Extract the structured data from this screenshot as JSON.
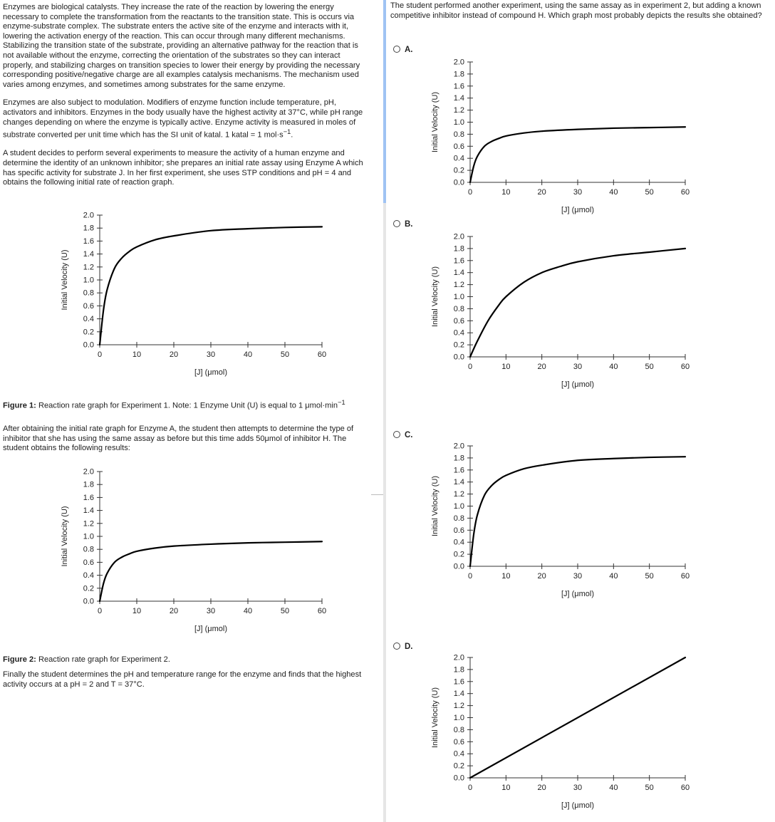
{
  "passage": {
    "p1": "Enzymes are biological catalysts. They increase the rate of the reaction by lowering the energy necessary to complete the transformation from the reactants to the transition state. This is occurs via enzyme-substrate complex. The substrate enters the active site of the enzyme and interacts with it, lowering the activation energy of the reaction. This can occur through many different mechanisms. Stabilizing the transition state of the substrate, providing an alternative pathway for the reaction that is not available without the enzyme, correcting the orientation of the substrates so they can interact properly, and stabilizing charges on transition species to lower their energy by providing the necessary corresponding positive/negative charge are all examples catalysis mechanisms. The mechanism used varies among enzymes, and sometimes among substrates for the same enzyme.",
    "p2_main": "Enzymes are also subject to modulation. Modifiers of enzyme function include temperature, pH, activators and inhibitors. Enzymes in the body usually have the highest activity at 37°C, while pH range changes depending on where the enzyme is typically active. Enzyme activity is measured in moles of substrate converted per unit time which has the SI unit of katal. 1 katal = 1 mol·s",
    "p2_sup": "−1",
    "p2_end": ".",
    "p3": "A student decides to perform several experiments to measure the activity of a human enzyme and determine the identity of an unknown inhibitor; she prepares an initial rate assay using Enzyme A which has specific activity for substrate J. In her first experiment, she uses STP conditions and pH = 4 and obtains the following initial rate of reaction graph.",
    "fig1_label": "Figure 1:",
    "fig1_text": " Reaction rate graph for Experiment 1. Note: 1 Enzyme Unit (U) is equal to 1 μmol·min",
    "fig1_sup": "−1",
    "p4": "After obtaining the initial rate graph for Enzyme A, the student then attempts to determine the type of inhibitor that she has using the same assay as before but this time adds 50μmol of inhibitor H. The student obtains the following results:",
    "fig2_label": "Figure 2:",
    "fig2_text": " Reaction rate graph for Experiment 2.",
    "p5": "Finally the student determines the pH and temperature range for the enzyme and finds that the highest activity occurs at a pH = 2 and T = 37°C."
  },
  "question": {
    "text": "The student performed another experiment, using the same assay as in experiment 2, but adding a known competitive inhibitor instead of compound H. Which graph most probably depicts the results she obtained?",
    "options": [
      {
        "label": "A."
      },
      {
        "label": "B."
      },
      {
        "label": "C."
      },
      {
        "label": "D."
      }
    ]
  },
  "colors": {
    "text": "#222222",
    "curve": "#000000",
    "scroll_thumb": "#9fc3f3"
  },
  "chart_data": [
    {
      "id": "figure-1",
      "type": "line",
      "xlabel": "[J] (μmol)",
      "ylabel": "Initial Velocity (U)",
      "xlim": [
        0,
        60
      ],
      "ylim": [
        0,
        2.0
      ],
      "xticks": [
        0,
        10,
        20,
        30,
        40,
        50,
        60
      ],
      "yticks": [
        0.0,
        0.2,
        0.4,
        0.6,
        0.8,
        1.0,
        1.2,
        1.4,
        1.6,
        1.8,
        2.0
      ],
      "series": [
        {
          "name": "Experiment 1",
          "x": [
            0,
            1,
            2,
            4,
            6,
            8,
            10,
            15,
            20,
            30,
            40,
            50,
            60
          ],
          "y": [
            0,
            0.53,
            0.85,
            1.18,
            1.34,
            1.44,
            1.51,
            1.62,
            1.68,
            1.76,
            1.79,
            1.81,
            1.82
          ]
        }
      ]
    },
    {
      "id": "figure-2",
      "type": "line",
      "xlabel": "[J] (μmol)",
      "ylabel": "Initial Velocity (U)",
      "xlim": [
        0,
        60
      ],
      "ylim": [
        0,
        2.0
      ],
      "xticks": [
        0,
        10,
        20,
        30,
        40,
        50,
        60
      ],
      "yticks": [
        0.0,
        0.2,
        0.4,
        0.6,
        0.8,
        1.0,
        1.2,
        1.4,
        1.6,
        1.8,
        2.0
      ],
      "series": [
        {
          "name": "Experiment 2",
          "x": [
            0,
            1,
            2,
            4,
            6,
            8,
            10,
            15,
            20,
            30,
            40,
            50,
            60
          ],
          "y": [
            0,
            0.27,
            0.43,
            0.6,
            0.68,
            0.73,
            0.77,
            0.82,
            0.85,
            0.88,
            0.9,
            0.91,
            0.92
          ]
        }
      ]
    },
    {
      "id": "option-a",
      "type": "line",
      "xlabel": "[J] (μmol)",
      "ylabel": "Initial Velocity (U)",
      "xlim": [
        0,
        60
      ],
      "ylim": [
        0,
        2.0
      ],
      "xticks": [
        0,
        10,
        20,
        30,
        40,
        50,
        60
      ],
      "yticks": [
        0.0,
        0.2,
        0.4,
        0.6,
        0.8,
        1.0,
        1.2,
        1.4,
        1.6,
        1.8,
        2.0
      ],
      "series": [
        {
          "name": "Option A",
          "x": [
            0,
            1,
            2,
            4,
            6,
            8,
            10,
            15,
            20,
            30,
            40,
            50,
            60
          ],
          "y": [
            0,
            0.27,
            0.43,
            0.6,
            0.68,
            0.73,
            0.77,
            0.82,
            0.85,
            0.88,
            0.9,
            0.91,
            0.92
          ]
        }
      ]
    },
    {
      "id": "option-b",
      "type": "line",
      "xlabel": "[J] (μmol)",
      "ylabel": "Initial Velocity (U)",
      "xlim": [
        0,
        60
      ],
      "ylim": [
        0,
        2.0
      ],
      "xticks": [
        0,
        10,
        20,
        30,
        40,
        50,
        60
      ],
      "yticks": [
        0.0,
        0.2,
        0.4,
        0.6,
        0.8,
        1.0,
        1.2,
        1.4,
        1.6,
        1.8,
        2.0
      ],
      "series": [
        {
          "name": "Option B",
          "x": [
            0,
            2,
            5,
            8,
            10,
            15,
            20,
            25,
            30,
            40,
            50,
            60
          ],
          "y": [
            0,
            0.26,
            0.6,
            0.86,
            1.0,
            1.24,
            1.4,
            1.5,
            1.58,
            1.68,
            1.74,
            1.8
          ]
        }
      ]
    },
    {
      "id": "option-c",
      "type": "line",
      "xlabel": "[J] (μmol)",
      "ylabel": "Initial Velocity (U)",
      "xlim": [
        0,
        60
      ],
      "ylim": [
        0,
        2.0
      ],
      "xticks": [
        0,
        10,
        20,
        30,
        40,
        50,
        60
      ],
      "yticks": [
        0.0,
        0.2,
        0.4,
        0.6,
        0.8,
        1.0,
        1.2,
        1.4,
        1.6,
        1.8,
        2.0
      ],
      "series": [
        {
          "name": "Option C",
          "x": [
            0,
            1,
            2,
            4,
            6,
            8,
            10,
            15,
            20,
            30,
            40,
            50,
            60
          ],
          "y": [
            0,
            0.53,
            0.85,
            1.18,
            1.34,
            1.44,
            1.51,
            1.62,
            1.68,
            1.76,
            1.79,
            1.81,
            1.82
          ]
        }
      ]
    },
    {
      "id": "option-d",
      "type": "line",
      "xlabel": "[J] (μmol)",
      "ylabel": "Initial Velocity (U)",
      "xlim": [
        0,
        60
      ],
      "ylim": [
        0,
        2.0
      ],
      "xticks": [
        0,
        10,
        20,
        30,
        40,
        50,
        60
      ],
      "yticks": [
        0.0,
        0.2,
        0.4,
        0.6,
        0.8,
        1.0,
        1.2,
        1.4,
        1.6,
        1.8,
        2.0
      ],
      "series": [
        {
          "name": "Option D",
          "x": [
            0,
            60
          ],
          "y": [
            0,
            2.0
          ]
        }
      ]
    }
  ]
}
